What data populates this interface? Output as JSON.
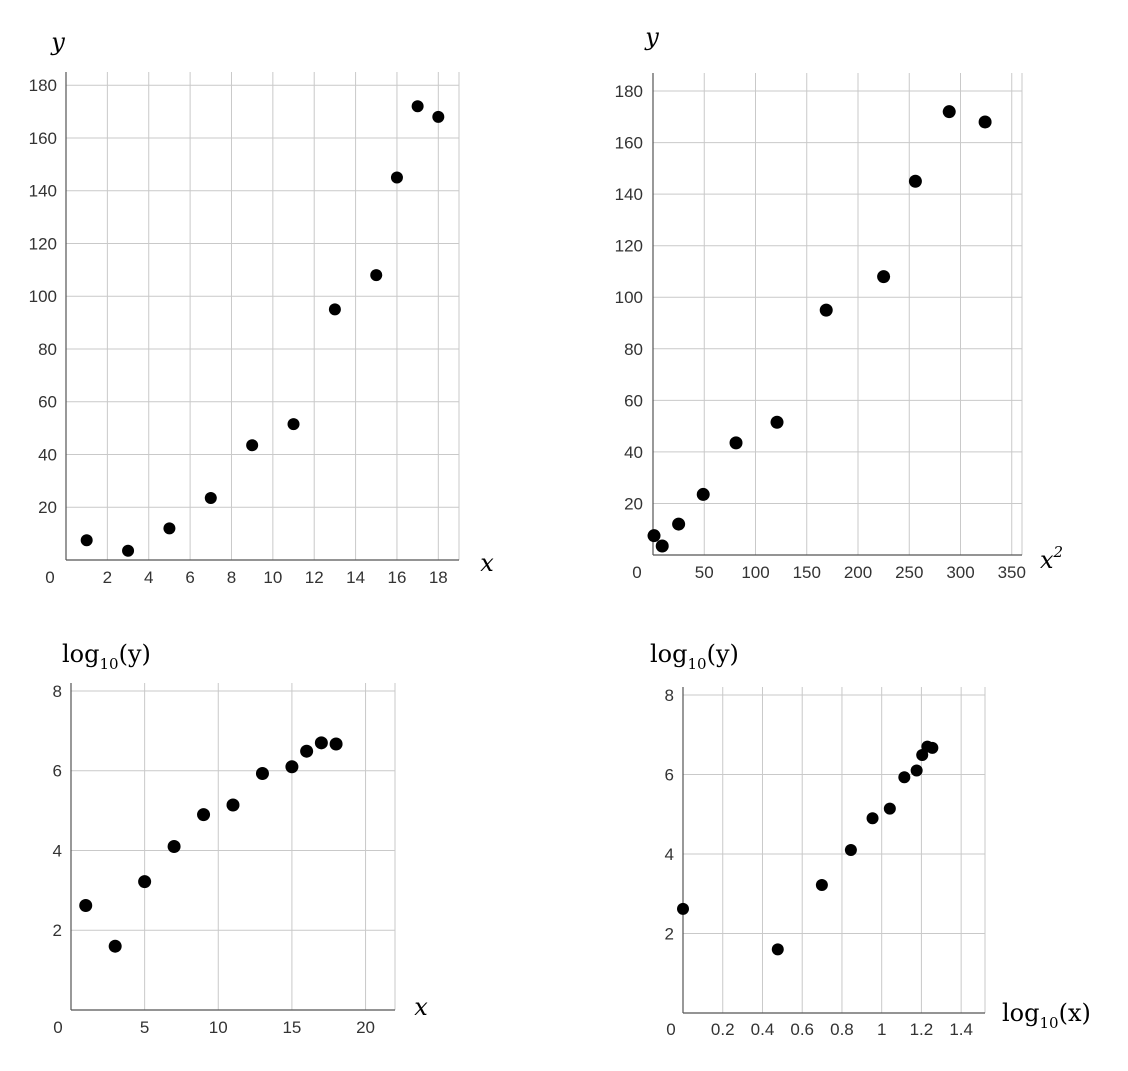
{
  "chart_data": [
    {
      "type": "scatter",
      "xlabel": "x",
      "ylabel": "y",
      "xlim": [
        0,
        19
      ],
      "ylim": [
        0,
        185
      ],
      "xticks": [
        2,
        4,
        6,
        8,
        10,
        12,
        14,
        16,
        18
      ],
      "yticks": [
        20,
        40,
        60,
        80,
        100,
        120,
        140,
        160,
        180
      ],
      "origin_label": "0",
      "grid": true,
      "points": [
        {
          "x": 1,
          "y": 7.5
        },
        {
          "x": 3,
          "y": 3.5
        },
        {
          "x": 5,
          "y": 12
        },
        {
          "x": 7,
          "y": 23.5
        },
        {
          "x": 9,
          "y": 43.5
        },
        {
          "x": 11,
          "y": 51.5
        },
        {
          "x": 13,
          "y": 95
        },
        {
          "x": 15,
          "y": 108
        },
        {
          "x": 16,
          "y": 145
        },
        {
          "x": 17,
          "y": 172
        },
        {
          "x": 18,
          "y": 168
        }
      ]
    },
    {
      "type": "scatter",
      "xlabel": "x",
      "xlabel_sup": "2",
      "ylabel": "y",
      "xlim": [
        0,
        360
      ],
      "ylim": [
        0,
        187
      ],
      "xticks": [
        50,
        100,
        150,
        200,
        250,
        300,
        350
      ],
      "yticks": [
        20,
        40,
        60,
        80,
        100,
        120,
        140,
        160,
        180
      ],
      "origin_label": "0",
      "grid": true,
      "points": [
        {
          "x": 1,
          "y": 7.5
        },
        {
          "x": 9,
          "y": 3.5
        },
        {
          "x": 25,
          "y": 12
        },
        {
          "x": 49,
          "y": 23.5
        },
        {
          "x": 81,
          "y": 43.5
        },
        {
          "x": 121,
          "y": 51.5
        },
        {
          "x": 169,
          "y": 95
        },
        {
          "x": 225,
          "y": 108
        },
        {
          "x": 256,
          "y": 145
        },
        {
          "x": 289,
          "y": 172
        },
        {
          "x": 324,
          "y": 168
        }
      ]
    },
    {
      "type": "scatter",
      "xlabel": "x",
      "ylabel_prefix": "log",
      "ylabel_sub": "10",
      "ylabel_arg": "(y)",
      "xlim": [
        0,
        22
      ],
      "ylim": [
        0,
        8.2
      ],
      "xticks": [
        5,
        10,
        15,
        20
      ],
      "yticks": [
        2,
        4,
        6,
        8
      ],
      "origin_label": "0",
      "grid": true,
      "points": [
        {
          "x": 1,
          "y": 2.62
        },
        {
          "x": 3,
          "y": 1.6
        },
        {
          "x": 5,
          "y": 3.22
        },
        {
          "x": 7,
          "y": 4.1
        },
        {
          "x": 9,
          "y": 4.9
        },
        {
          "x": 11,
          "y": 5.14
        },
        {
          "x": 13,
          "y": 5.93
        },
        {
          "x": 15,
          "y": 6.1
        },
        {
          "x": 16,
          "y": 6.49
        },
        {
          "x": 17,
          "y": 6.7
        },
        {
          "x": 18,
          "y": 6.67
        }
      ]
    },
    {
      "type": "scatter",
      "xlabel_prefix": "log",
      "xlabel_sub": "10",
      "xlabel_arg": "(x)",
      "ylabel_prefix": "log",
      "ylabel_sub": "10",
      "ylabel_arg": "(y)",
      "xlim": [
        0,
        1.52
      ],
      "ylim": [
        0,
        8.2
      ],
      "xticks": [
        0.2,
        0.4,
        0.6,
        0.8,
        1,
        1.2,
        1.4
      ],
      "yticks": [
        2,
        4,
        6,
        8
      ],
      "origin_label": "0",
      "grid": true,
      "points": [
        {
          "x": 0,
          "y": 2.62
        },
        {
          "x": 0.477,
          "y": 1.6
        },
        {
          "x": 0.699,
          "y": 3.22
        },
        {
          "x": 0.845,
          "y": 4.1
        },
        {
          "x": 0.954,
          "y": 4.9
        },
        {
          "x": 1.041,
          "y": 5.14
        },
        {
          "x": 1.114,
          "y": 5.93
        },
        {
          "x": 1.176,
          "y": 6.1
        },
        {
          "x": 1.204,
          "y": 6.49
        },
        {
          "x": 1.23,
          "y": 6.7
        },
        {
          "x": 1.255,
          "y": 6.67
        }
      ]
    }
  ]
}
